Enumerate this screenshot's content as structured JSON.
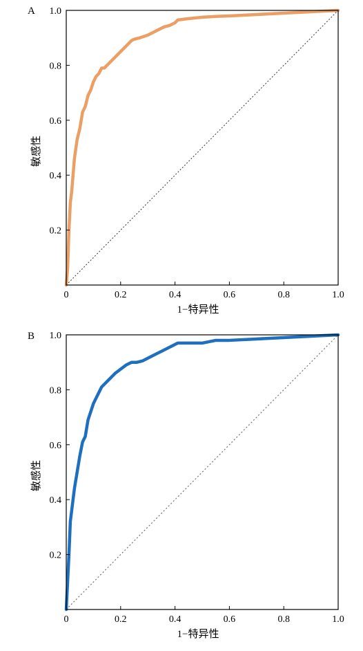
{
  "chart_data": [
    {
      "type": "line",
      "panel_label": "A",
      "xlabel": "1−特异性",
      "ylabel": "敏感性",
      "xlim": [
        0,
        1
      ],
      "ylim": [
        0,
        1
      ],
      "x_ticks": [
        "0",
        "0.2",
        "0.4",
        "0.6",
        "0.8",
        "1.0"
      ],
      "y_ticks": [
        "0.2",
        "0.4",
        "0.6",
        "0.8",
        "1.0"
      ],
      "grid": false,
      "colors": {
        "curve": "#eb9f64",
        "reference": "#333333"
      },
      "series": [
        {
          "x": [
            0,
            0.005,
            0.01,
            0.015,
            0.02,
            0.025,
            0.03,
            0.04,
            0.05,
            0.06,
            0.07,
            0.08,
            0.09,
            0.1,
            0.11,
            0.12,
            0.13,
            0.14,
            0.16,
            0.18,
            0.2,
            0.22,
            0.24,
            0.25,
            0.27,
            0.3,
            0.33,
            0.36,
            0.38,
            0.4,
            0.41,
            0.45,
            0.5,
            0.55,
            0.6,
            0.7,
            0.8,
            0.9,
            1.0
          ],
          "y": [
            0,
            0.06,
            0.2,
            0.3,
            0.34,
            0.4,
            0.46,
            0.53,
            0.57,
            0.63,
            0.65,
            0.69,
            0.71,
            0.74,
            0.76,
            0.77,
            0.79,
            0.79,
            0.81,
            0.83,
            0.85,
            0.87,
            0.89,
            0.895,
            0.9,
            0.91,
            0.925,
            0.94,
            0.945,
            0.955,
            0.965,
            0.97,
            0.975,
            0.978,
            0.98,
            0.985,
            0.99,
            0.995,
            1.0
          ]
        }
      ],
      "reference_line": {
        "x": [
          0,
          1
        ],
        "y": [
          0,
          1
        ],
        "style": "dotted"
      }
    },
    {
      "type": "line",
      "panel_label": "B",
      "xlabel": "1−特异性",
      "ylabel": "敏感性",
      "xlim": [
        0,
        1
      ],
      "ylim": [
        0,
        1
      ],
      "x_ticks": [
        "0",
        "0.2",
        "0.4",
        "0.6",
        "0.8",
        "1.0"
      ],
      "y_ticks": [
        "0.2",
        "0.4",
        "0.6",
        "0.8",
        "1.0"
      ],
      "grid": false,
      "colors": {
        "curve": "#1f6fbf",
        "reference": "#707070"
      },
      "series": [
        {
          "x": [
            0,
            0.005,
            0.01,
            0.015,
            0.02,
            0.025,
            0.03,
            0.04,
            0.05,
            0.06,
            0.07,
            0.08,
            0.09,
            0.1,
            0.11,
            0.12,
            0.13,
            0.14,
            0.16,
            0.18,
            0.2,
            0.22,
            0.24,
            0.26,
            0.28,
            0.3,
            0.33,
            0.36,
            0.38,
            0.4,
            0.41,
            0.44,
            0.5,
            0.55,
            0.6,
            0.7,
            0.8,
            0.9,
            1.0
          ],
          "y": [
            0,
            0.1,
            0.2,
            0.32,
            0.36,
            0.4,
            0.44,
            0.5,
            0.56,
            0.61,
            0.63,
            0.69,
            0.72,
            0.75,
            0.77,
            0.79,
            0.81,
            0.82,
            0.84,
            0.86,
            0.875,
            0.89,
            0.9,
            0.9,
            0.905,
            0.915,
            0.93,
            0.945,
            0.955,
            0.965,
            0.97,
            0.97,
            0.97,
            0.98,
            0.98,
            0.985,
            0.99,
            0.995,
            1.0
          ]
        }
      ],
      "reference_line": {
        "x": [
          0,
          1
        ],
        "y": [
          0,
          1
        ],
        "style": "dotted"
      }
    }
  ]
}
